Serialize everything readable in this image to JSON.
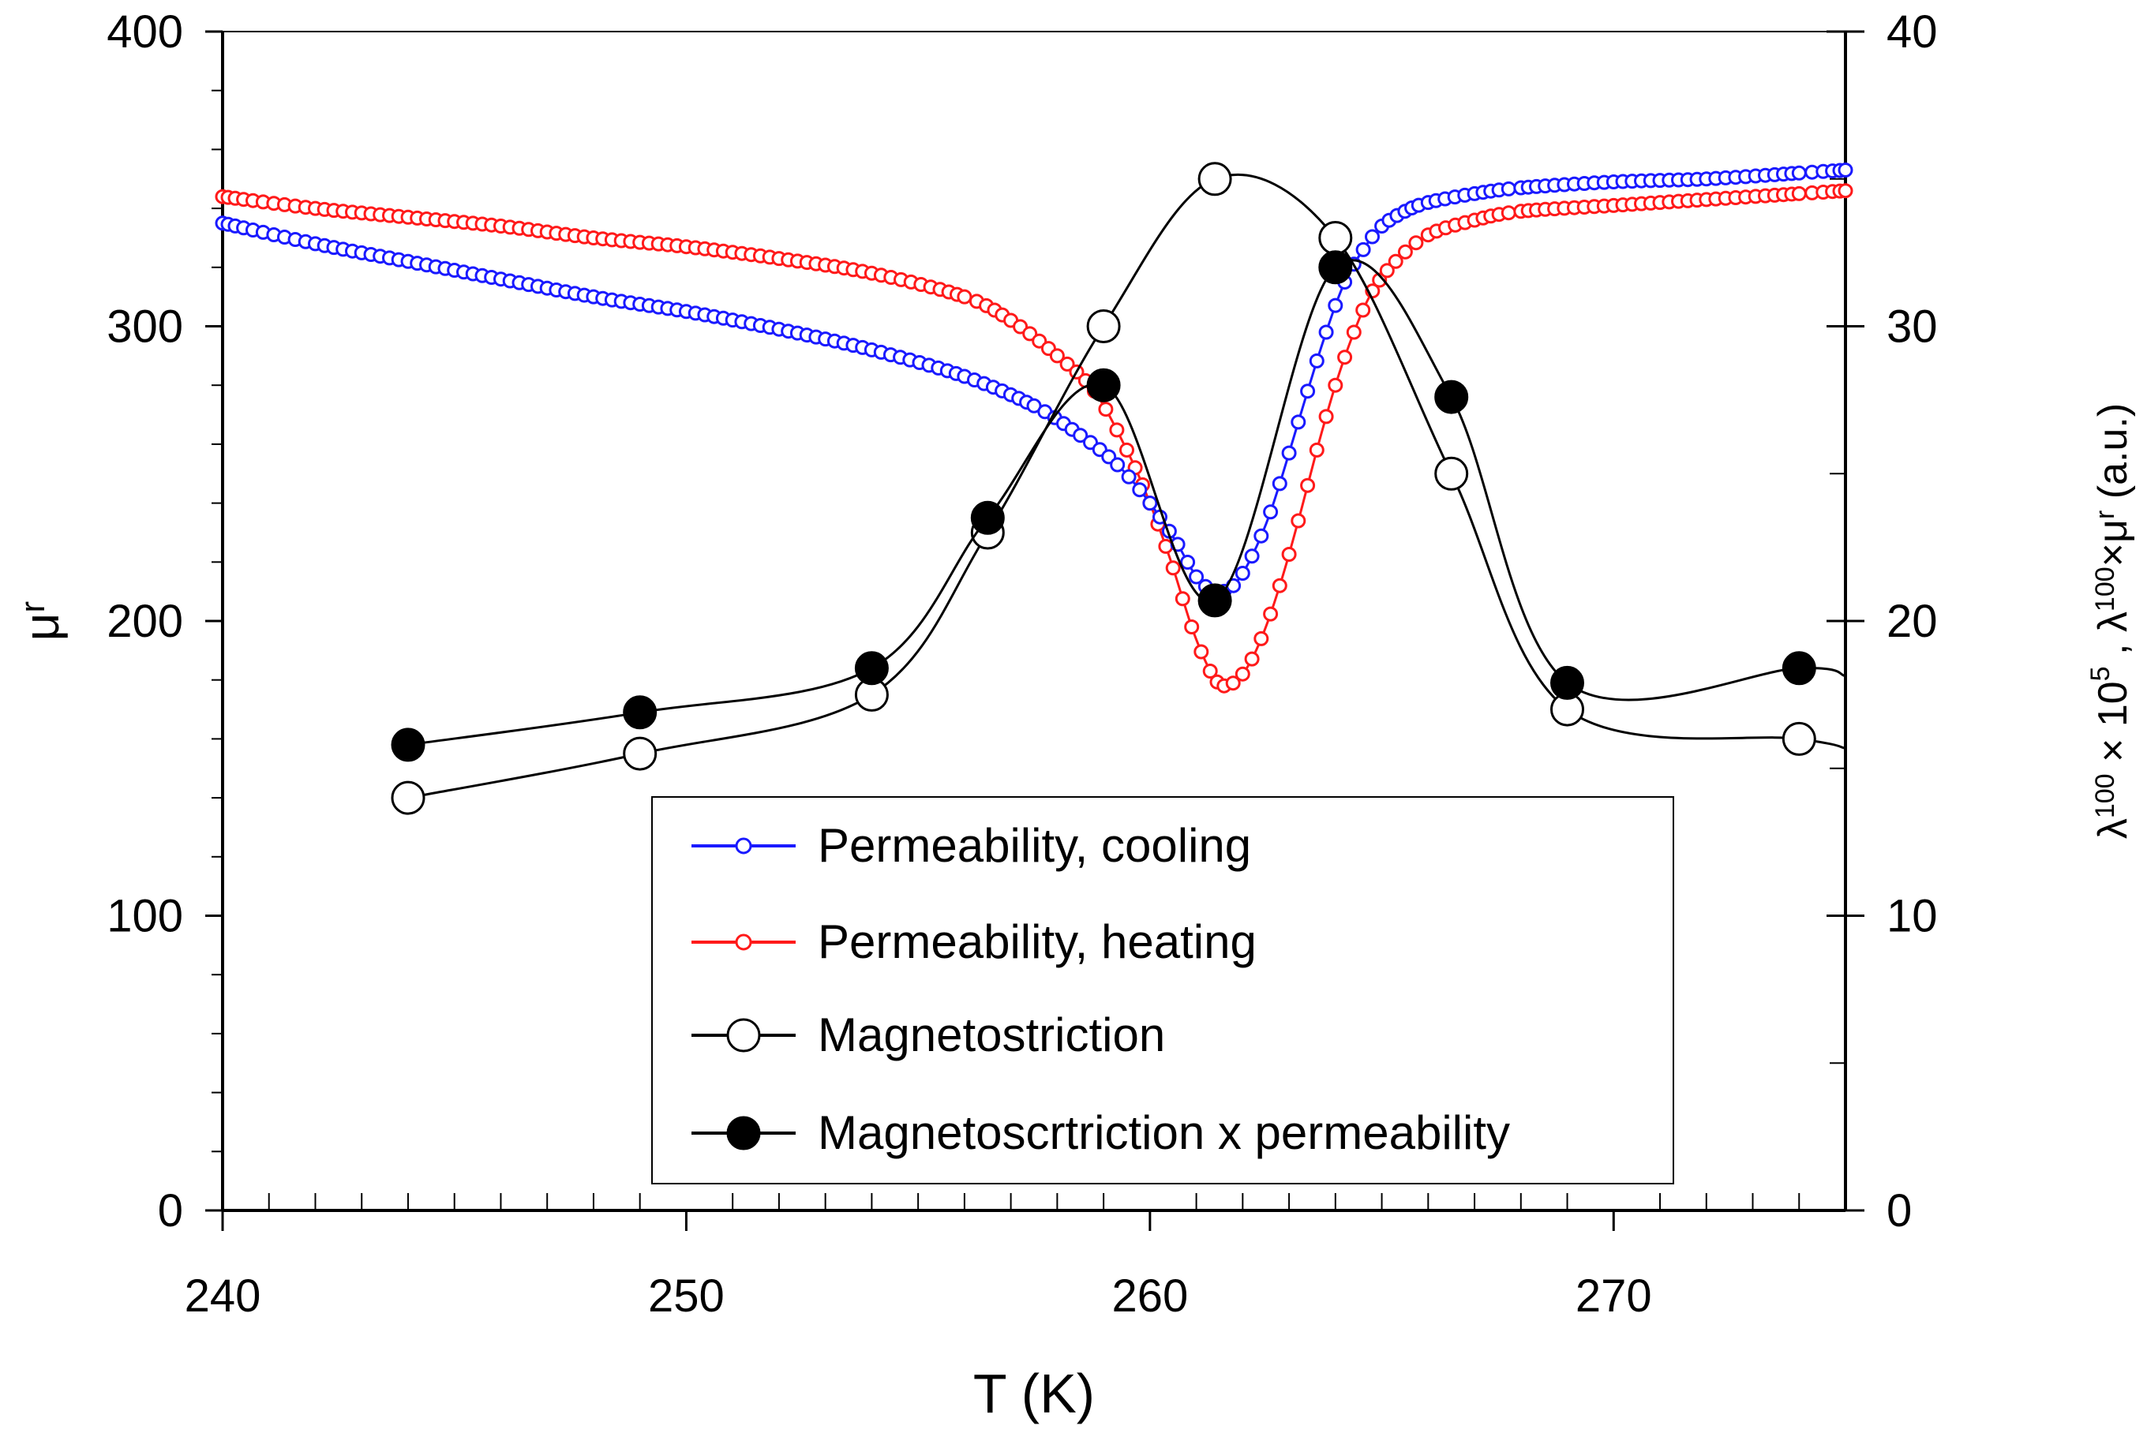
{
  "chart_data": {
    "type": "scatter",
    "title": "",
    "xlabel": "T (K)",
    "ylabel": "μr",
    "ylabel_main": "μ",
    "ylabel_sub": "r",
    "y2label": "λ100 × 10^5 , λ100×μr (a.u.)",
    "y2label_parts": {
      "lambda1": "λ",
      "sub1": "100",
      "times1": " × 10",
      "sup1": "5",
      "sep": " , ",
      "lambda2": "λ",
      "sub2": "100",
      "times2": "×μ",
      "sub3": "r",
      "tail": " (a.u.)"
    },
    "xlim": [
      240,
      275
    ],
    "ylim": [
      0,
      400
    ],
    "y2lim": [
      0,
      40
    ],
    "xticks": [
      240,
      250,
      260,
      270
    ],
    "yticks": [
      0,
      100,
      200,
      300,
      400
    ],
    "y2ticks": [
      0,
      10,
      20,
      30,
      40
    ],
    "grid": false,
    "legend_position": "lower-right",
    "series": [
      {
        "name": "Permeability, cooling",
        "axis": "left",
        "color": "#1a1aff",
        "marker": "small-open-circle",
        "x": [
          240.0,
          242.0,
          244.0,
          246.0,
          248.0,
          250.0,
          252.0,
          254.0,
          256.0,
          257.5,
          258.5,
          259.3,
          260.0,
          260.6,
          261.0,
          261.4,
          261.8,
          262.2,
          262.6,
          263.0,
          263.4,
          263.8,
          264.2,
          264.6,
          265.0,
          265.5,
          266.0,
          267.0,
          268.0,
          270.0,
          272.0,
          274.0,
          275.0
        ],
        "y": [
          335,
          328,
          322,
          316,
          310,
          305,
          299,
          292,
          283,
          273,
          263,
          253,
          240,
          226,
          215,
          210,
          212,
          222,
          237,
          257,
          278,
          298,
          315,
          326,
          334,
          339,
          342,
          345,
          347,
          349,
          350,
          352,
          353
        ]
      },
      {
        "name": "Permeability, heating",
        "axis": "left",
        "color": "#ff1a1a",
        "marker": "small-open-circle",
        "x": [
          240.0,
          242.0,
          244.0,
          246.0,
          248.0,
          250.0,
          252.0,
          254.0,
          256.0,
          257.0,
          258.0,
          258.8,
          259.5,
          260.0,
          260.5,
          260.9,
          261.3,
          261.6,
          262.0,
          262.4,
          262.8,
          263.2,
          263.6,
          264.0,
          264.4,
          264.8,
          265.3,
          266.0,
          267.0,
          268.0,
          270.0,
          272.0,
          274.0,
          275.0
        ],
        "y": [
          344,
          340,
          337,
          334,
          330,
          327,
          323,
          318,
          310,
          302,
          290,
          278,
          258,
          240,
          218,
          198,
          183,
          178,
          182,
          194,
          212,
          234,
          258,
          280,
          298,
          312,
          322,
          331,
          336,
          339,
          341,
          343,
          345,
          346
        ]
      },
      {
        "name": "Magnetostriction",
        "axis": "right",
        "color": "#000000",
        "marker": "large-open-circle",
        "x": [
          244.0,
          249.0,
          254.0,
          256.5,
          259.0,
          261.4,
          264.0,
          266.5,
          269.0,
          274.0
        ],
        "y": [
          14.0,
          15.5,
          17.5,
          23.0,
          30.0,
          35.0,
          33.0,
          25.0,
          17.0,
          16.0
        ]
      },
      {
        "name": "Magnetoscrtriction x permeability",
        "axis": "right",
        "color": "#000000",
        "marker": "large-filled-circle",
        "x": [
          244.0,
          249.0,
          254.0,
          256.5,
          259.0,
          261.4,
          264.0,
          266.5,
          269.0,
          274.0
        ],
        "y": [
          15.8,
          16.9,
          18.4,
          23.5,
          28.0,
          20.7,
          32.0,
          27.6,
          17.9,
          18.4
        ]
      }
    ]
  }
}
